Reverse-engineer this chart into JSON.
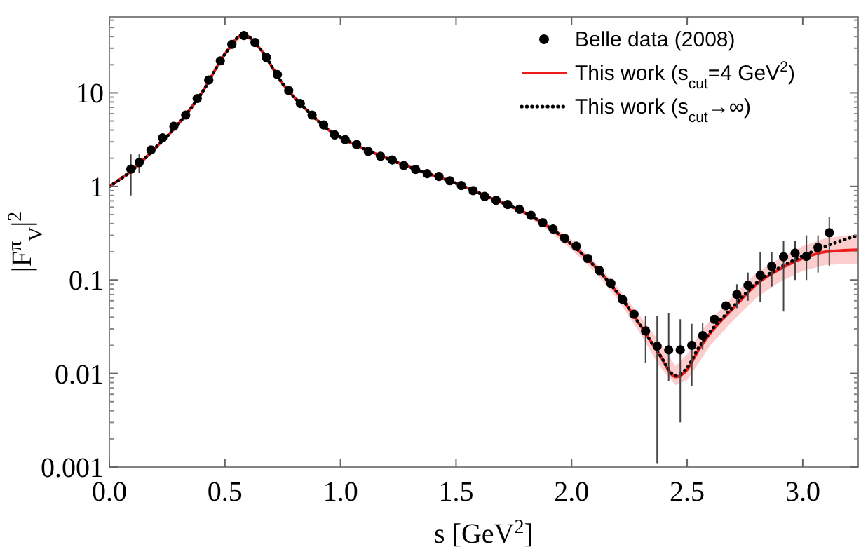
{
  "chart_data": {
    "type": "line",
    "xlabel": "s [GeV$^{2}$]",
    "ylabel": "|F$^{π}$$_{V}$|$^{2}$",
    "xlim": [
      0,
      3.24
    ],
    "ylim": [
      0.001,
      65
    ],
    "log": "y",
    "legend": "top right",
    "xticks": [
      {
        "value": 0,
        "label": "0.0"
      },
      {
        "value": 0.5,
        "label": "0.5"
      },
      {
        "value": 1,
        "label": "1.0"
      },
      {
        "value": 1.5,
        "label": "1.5"
      },
      {
        "value": 2,
        "label": "2.0"
      },
      {
        "value": 2.5,
        "label": "2.5"
      },
      {
        "value": 3,
        "label": "3.0"
      }
    ],
    "yticks": [
      0.001,
      0.01,
      0.1,
      1,
      10
    ],
    "series": [
      {
        "name": "Belle data (2008)",
        "type": "scatter",
        "marker": "circle",
        "color": "#000000",
        "x": [
          0.093,
          0.129,
          0.18,
          0.23,
          0.279,
          0.33,
          0.38,
          0.43,
          0.48,
          0.53,
          0.582,
          0.63,
          0.679,
          0.727,
          0.776,
          0.826,
          0.877,
          0.927,
          0.975,
          1.02,
          1.07,
          1.12,
          1.173,
          1.224,
          1.274,
          1.325,
          1.375,
          1.426,
          1.473,
          1.523,
          1.574,
          1.624,
          1.673,
          1.723,
          1.774,
          1.824,
          1.875,
          1.92,
          1.97,
          2.02,
          2.07,
          2.12,
          2.17,
          2.22,
          2.27,
          2.32,
          2.37,
          2.42,
          2.47,
          2.52,
          2.567,
          2.618,
          2.668,
          2.715,
          2.763,
          2.816,
          2.866,
          2.917,
          2.967,
          3.016,
          3.066,
          3.115
        ],
        "values": [
          1.53,
          1.8,
          2.45,
          3.3,
          4.4,
          5.8,
          8.7,
          13.7,
          22,
          33,
          41,
          34.5,
          24,
          15.7,
          10.6,
          7.7,
          5.8,
          4.55,
          3.55,
          3.16,
          2.8,
          2.37,
          2.1,
          1.92,
          1.67,
          1.52,
          1.37,
          1.28,
          1.15,
          1.02,
          0.9,
          0.78,
          0.71,
          0.64,
          0.57,
          0.49,
          0.41,
          0.35,
          0.28,
          0.23,
          0.17,
          0.126,
          0.092,
          0.062,
          0.043,
          0.0285,
          0.0196,
          0.0179,
          0.0179,
          0.02,
          0.0254,
          0.038,
          0.053,
          0.07,
          0.088,
          0.112,
          0.14,
          0.177,
          0.194,
          0.179,
          0.223,
          0.32
        ],
        "errors": [
          [
            0.8,
            2.2
          ],
          [
            1.4,
            2.2
          ],
          null,
          null,
          null,
          null,
          null,
          null,
          null,
          null,
          null,
          null,
          null,
          null,
          null,
          null,
          null,
          null,
          null,
          null,
          null,
          null,
          null,
          null,
          null,
          null,
          null,
          null,
          null,
          null,
          null,
          null,
          null,
          null,
          null,
          null,
          null,
          null,
          null,
          null,
          null,
          null,
          null,
          null,
          null,
          [
            0.013,
            0.041
          ],
          [
            0.0011,
            0.041
          ],
          [
            0.0083,
            0.044
          ],
          [
            0.003,
            0.038
          ],
          [
            0.0074,
            0.034
          ],
          [
            0.018,
            0.035
          ],
          null,
          null,
          [
            0.05,
            0.09
          ],
          [
            0.06,
            0.12
          ],
          [
            0.058,
            0.2
          ],
          [
            0.085,
            0.2
          ],
          [
            0.046,
            0.26
          ],
          [
            0.1,
            0.26
          ],
          [
            0.1,
            0.3
          ],
          [
            0.12,
            0.3
          ],
          [
            0.14,
            0.47
          ]
        ]
      },
      {
        "name": "This work (s$_{cut}$=4 GeV$^{2}$)",
        "line_style": "solid",
        "marker": "none",
        "color": "#ee1c1c",
        "x": [
          0,
          0.1,
          0.2,
          0.3,
          0.4,
          0.5,
          0.58,
          0.65,
          0.75,
          0.85,
          0.95,
          1.05,
          1.2,
          1.35,
          1.5,
          1.65,
          1.8,
          1.9,
          2.0,
          2.1,
          2.2,
          2.3,
          2.38,
          2.45,
          2.5,
          2.55,
          2.6,
          2.7,
          2.8,
          2.9,
          3.0,
          3.1,
          3.24
        ],
        "values": [
          1.0,
          1.5,
          2.6,
          4.7,
          10,
          26,
          42,
          30,
          12.5,
          6.7,
          4.0,
          2.9,
          2.0,
          1.45,
          1.08,
          0.75,
          0.52,
          0.37,
          0.24,
          0.14,
          0.072,
          0.032,
          0.016,
          0.0092,
          0.011,
          0.018,
          0.027,
          0.05,
          0.09,
          0.13,
          0.17,
          0.2,
          0.21
        ],
        "lower": [
          0.97,
          1.45,
          2.5,
          4.55,
          9.7,
          25,
          41,
          29,
          12.1,
          6.5,
          3.9,
          2.8,
          1.94,
          1.4,
          1.04,
          0.72,
          0.49,
          0.34,
          0.21,
          0.123,
          0.062,
          0.026,
          0.012,
          0.0075,
          0.0085,
          0.013,
          0.02,
          0.037,
          0.065,
          0.095,
          0.125,
          0.145,
          0.15
        ],
        "upper": [
          1.03,
          1.55,
          2.7,
          4.85,
          10.3,
          27,
          43,
          31,
          12.9,
          6.9,
          4.1,
          3.0,
          2.06,
          1.5,
          1.12,
          0.78,
          0.55,
          0.4,
          0.27,
          0.157,
          0.083,
          0.04,
          0.022,
          0.012,
          0.016,
          0.026,
          0.037,
          0.068,
          0.12,
          0.17,
          0.23,
          0.28,
          0.31
        ]
      },
      {
        "name": "This work (s$_{cut}$→∞)",
        "line_style": "dotted",
        "marker": "none",
        "color": "#000000",
        "x": [
          0,
          0.1,
          0.2,
          0.3,
          0.4,
          0.5,
          0.58,
          0.65,
          0.75,
          0.85,
          0.95,
          1.05,
          1.2,
          1.35,
          1.5,
          1.65,
          1.8,
          1.9,
          2.0,
          2.1,
          2.2,
          2.3,
          2.38,
          2.45,
          2.5,
          2.55,
          2.6,
          2.7,
          2.8,
          2.9,
          3.0,
          3.1,
          3.24
        ],
        "values": [
          1.0,
          1.5,
          2.6,
          4.7,
          10,
          26,
          42,
          30,
          12.5,
          6.7,
          4.0,
          2.9,
          2.0,
          1.45,
          1.08,
          0.75,
          0.52,
          0.37,
          0.24,
          0.14,
          0.072,
          0.032,
          0.016,
          0.0095,
          0.0115,
          0.019,
          0.028,
          0.052,
          0.093,
          0.135,
          0.18,
          0.23,
          0.3
        ]
      }
    ]
  }
}
